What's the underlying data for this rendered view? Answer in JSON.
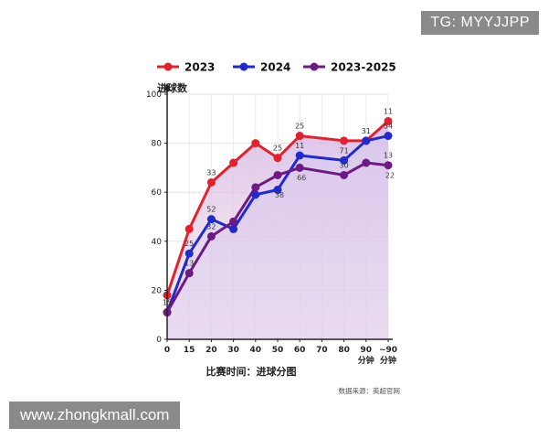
{
  "watermark_top": "TG: MYYJJPP",
  "watermark_bottom": "www.zhongkmall.com",
  "chart_data": {
    "type": "line",
    "title": "",
    "ylabel": "进球数",
    "xlabel": "比赛时间：进球分图",
    "source": "数据来源：英超官网",
    "x_ticks": [
      "0",
      "15",
      "20",
      "30",
      "40",
      "50",
      "60",
      "70",
      "80",
      "90",
      "~90"
    ],
    "x_tick_sub": [
      {
        "index": 9,
        "text": "分钟"
      },
      {
        "index": 10,
        "text": "分钟"
      }
    ],
    "y_ticks": [
      0,
      20,
      40,
      60,
      80,
      100
    ],
    "ylim": [
      0,
      100
    ],
    "grid": true,
    "legend_position": "top",
    "series": [
      {
        "name": "2023",
        "color": "#e3202c",
        "fill": "#f7c9cd",
        "x_index": [
          0,
          1,
          2,
          3,
          4,
          5,
          6,
          8,
          9,
          10
        ],
        "values": [
          18,
          45,
          64,
          72,
          80,
          74,
          83,
          81,
          81,
          89
        ],
        "labels": [
          "",
          "",
          "33",
          "",
          "",
          "25",
          "25",
          "",
          "",
          "11"
        ]
      },
      {
        "name": "2024",
        "color": "#1f2bd1",
        "fill": "#c9c8f4",
        "x_index": [
          0,
          1,
          2,
          3,
          4,
          5,
          6,
          8,
          9,
          10
        ],
        "values": [
          11,
          35,
          49,
          45,
          59,
          61,
          75,
          73,
          81,
          83
        ],
        "labels": [
          "",
          "25",
          "52",
          "",
          "",
          "",
          "11",
          "71",
          "31",
          "54"
        ]
      },
      {
        "name": "2023-2025",
        "color": "#6e1a86",
        "fill": "#dcc4ea",
        "x_index": [
          0,
          1,
          2,
          3,
          4,
          5,
          6,
          8,
          9,
          10
        ],
        "values": [
          11,
          27,
          42,
          48,
          62,
          67,
          70,
          67,
          72,
          71
        ],
        "labels": [
          "15",
          "13",
          "32",
          "",
          "",
          "",
          "",
          "30",
          "",
          "13"
        ]
      }
    ],
    "extra_labels": [
      {
        "text": "22",
        "x_index": 10,
        "y": 67
      },
      {
        "text": "38",
        "x_index": 5,
        "y": 59
      },
      {
        "text": "66",
        "x_index": 6,
        "y": 66
      }
    ]
  }
}
